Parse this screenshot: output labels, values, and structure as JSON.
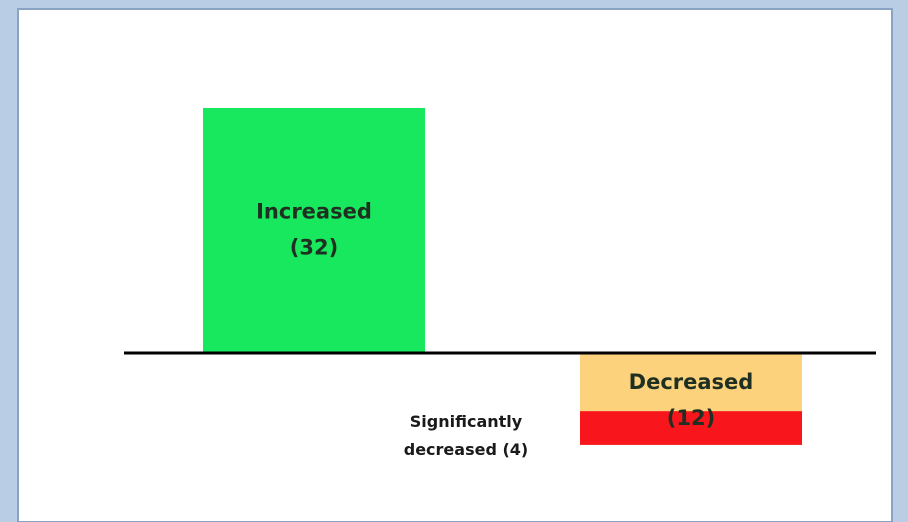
{
  "chart_data": {
    "type": "bar",
    "title": "",
    "xlabel": "",
    "ylabel": "",
    "grid": false,
    "legend": "none",
    "bars": [
      {
        "key": "increased",
        "label": "Increased",
        "count_text": "(32)",
        "value": 32,
        "direction": "up",
        "color": "#18e85e"
      },
      {
        "key": "decreased",
        "label": "Decreased",
        "count_text": "(12)",
        "value": 12,
        "direction": "down",
        "color": "#fcd27c",
        "sub_segment": {
          "key": "significantly-decreased",
          "label_line1": "Significantly",
          "label_line2": "decreased (4)",
          "value": 4,
          "color": "#f8161c"
        }
      }
    ],
    "colors": {
      "background": "#ffffff",
      "frame": "#b9cde4",
      "baseline": "#000000"
    }
  }
}
